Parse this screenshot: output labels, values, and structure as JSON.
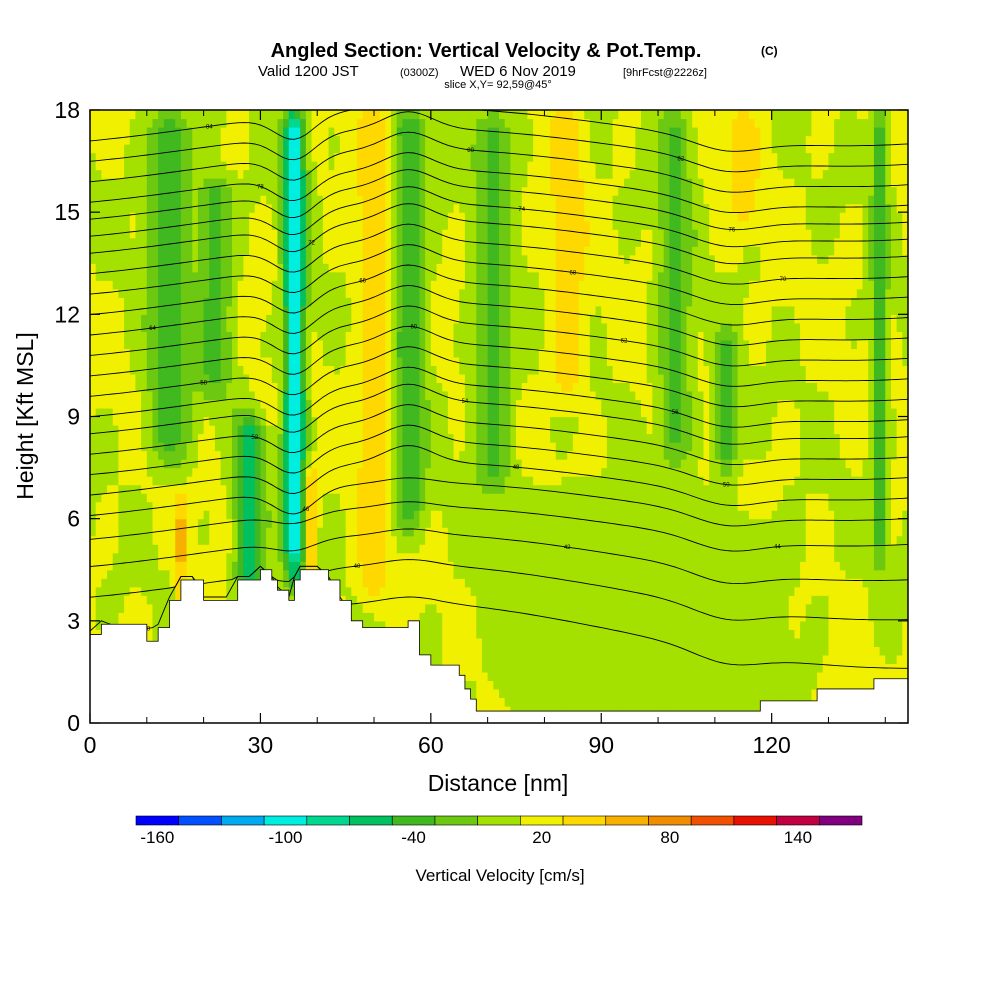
{
  "header": {
    "title_main": "Angled Section: Vertical Velocity & Pot.Temp.",
    "title_unit": "(C)",
    "valid_line": {
      "prefix": "Valid 1200 JST",
      "utc": "(0300Z)",
      "date": "WED 6 Nov 2019",
      "fcst": "[9hrFcst@2226z]"
    },
    "slice_line": "slice X,Y= 92,59@45°"
  },
  "chart_data": {
    "type": "heatmap",
    "title": "Angled Section: Vertical Velocity & Pot.Temp. (C)",
    "xlabel": "Distance [nm]",
    "ylabel": "Height [Kft MSL]",
    "xlim": [
      0,
      144
    ],
    "ylim": [
      0,
      18
    ],
    "x_ticks": [
      0,
      30,
      60,
      90,
      120
    ],
    "x_tick_labels": [
      "0",
      "30",
      "60",
      "90",
      "120"
    ],
    "y_ticks": [
      0,
      3,
      6,
      9,
      12,
      15,
      18
    ],
    "y_tick_labels": [
      "0",
      "3",
      "6",
      "9",
      "12",
      "15",
      "18"
    ],
    "color_scale": {
      "label": "Vertical Velocity [cm/s]",
      "tick_labels": [
        "-160",
        "-100",
        "-40",
        "20",
        "80",
        "140"
      ],
      "tick_values": [
        -160,
        -100,
        -40,
        20,
        80,
        140
      ],
      "range": [
        -170,
        170
      ],
      "bins": [
        {
          "lo": -170,
          "hi": -150,
          "color": "#0000ff"
        },
        {
          "lo": -150,
          "hi": -130,
          "color": "#0050ff"
        },
        {
          "lo": -130,
          "hi": -110,
          "color": "#00aaf0"
        },
        {
          "lo": -110,
          "hi": -90,
          "color": "#00eee0"
        },
        {
          "lo": -90,
          "hi": -70,
          "color": "#00d890"
        },
        {
          "lo": -70,
          "hi": -50,
          "color": "#00c060"
        },
        {
          "lo": -50,
          "hi": -30,
          "color": "#40b820"
        },
        {
          "lo": -30,
          "hi": -10,
          "color": "#6cc810"
        },
        {
          "lo": -10,
          "hi": 10,
          "color": "#a4e000"
        },
        {
          "lo": 10,
          "hi": 30,
          "color": "#f0f000"
        },
        {
          "lo": 30,
          "hi": 50,
          "color": "#ffd800"
        },
        {
          "lo": 50,
          "hi": 70,
          "color": "#f8b000"
        },
        {
          "lo": 70,
          "hi": 90,
          "color": "#f08c00"
        },
        {
          "lo": 90,
          "hi": 110,
          "color": "#f05000"
        },
        {
          "lo": 110,
          "hi": 130,
          "color": "#e81000"
        },
        {
          "lo": 130,
          "hi": 150,
          "color": "#c00040"
        },
        {
          "lo": 150,
          "hi": 170,
          "color": "#800080"
        }
      ]
    },
    "updraft_features": [
      {
        "x": 36,
        "z_bottom": 4.6,
        "z_top": 18,
        "w": -100,
        "width": 2.0
      },
      {
        "x": 28,
        "z_bottom": 4.0,
        "z_top": 9,
        "w": -65,
        "width": 2.5
      },
      {
        "x": 14,
        "z_bottom": 8.0,
        "z_top": 18,
        "w": -40,
        "width": 4.0
      },
      {
        "x": 22,
        "z_bottom": 10.0,
        "z_top": 16,
        "w": -40,
        "width": 3.0
      },
      {
        "x": 56,
        "z_bottom": 6.0,
        "z_top": 18,
        "w": -50,
        "width": 3.0
      },
      {
        "x": 71,
        "z_bottom": 7.0,
        "z_top": 18,
        "w": -35,
        "width": 3.5
      },
      {
        "x": 103,
        "z_bottom": 8.0,
        "z_top": 18,
        "w": -35,
        "width": 3.0
      },
      {
        "x": 112,
        "z_bottom": 7.5,
        "z_top": 11.5,
        "w": -40,
        "width": 2.0
      },
      {
        "x": 139,
        "z_bottom": 5.0,
        "z_top": 18,
        "w": -40,
        "width": 1.5
      },
      {
        "x": 90,
        "z_bottom": 0.3,
        "z_top": 7,
        "w": -5,
        "width": 20.0
      },
      {
        "x": 112,
        "z_bottom": 0.3,
        "z_top": 6,
        "w": -5,
        "width": 12.0
      }
    ],
    "warm_features": [
      {
        "x": 50,
        "z_bottom": 4.0,
        "z_top": 18,
        "w": 45,
        "width": 3.0
      },
      {
        "x": 84,
        "z_bottom": 10.0,
        "z_top": 18,
        "w": 45,
        "width": 3.0
      },
      {
        "x": 16,
        "z_bottom": 3.5,
        "z_top": 6.5,
        "w": 60,
        "width": 1.0
      },
      {
        "x": 39,
        "z_bottom": 4.5,
        "z_top": 7.5,
        "w": 55,
        "width": 1.0
      },
      {
        "x": 115,
        "z_bottom": 15.0,
        "z_top": 18,
        "w": 40,
        "width": 3.0
      }
    ],
    "terrain": {
      "x": [
        0,
        2,
        10,
        12,
        14,
        16,
        18,
        20,
        22,
        24,
        26,
        28,
        30,
        32,
        33,
        35,
        36,
        37,
        40,
        42,
        44,
        46,
        48,
        52,
        56,
        58,
        60,
        62,
        65,
        66,
        67,
        68,
        70,
        90,
        100,
        105,
        110,
        115,
        118,
        125,
        128,
        132,
        136,
        138,
        142,
        144
      ],
      "height": [
        2.6,
        2.9,
        2.4,
        2.8,
        3.6,
        4.2,
        4.2,
        3.6,
        3.6,
        3.6,
        4.2,
        4.2,
        4.5,
        4.2,
        3.9,
        3.6,
        4.2,
        4.5,
        4.5,
        4.2,
        3.6,
        3.0,
        2.8,
        2.8,
        3.0,
        2.0,
        1.7,
        1.7,
        1.4,
        1.0,
        0.7,
        0.35,
        0.35,
        0.35,
        0.35,
        0.35,
        0.35,
        0.35,
        0.65,
        0.65,
        1.0,
        1.0,
        1.0,
        1.3,
        1.3,
        1.3
      ]
    },
    "isentrope_heights_at_left": [
      3.0,
      4.1,
      5.0,
      5.8,
      6.5,
      7.1,
      7.7,
      8.3,
      8.9,
      9.4,
      10.0,
      10.6,
      11.2,
      11.8,
      12.4,
      13.0,
      13.6,
      14.2,
      14.7,
      15.2,
      15.7,
      16.3,
      16.9,
      17.5
    ],
    "isentrope_labels": [
      "38",
      "40",
      "42",
      "44",
      "46",
      "48",
      "50",
      "52",
      "54",
      "56",
      "58",
      "60",
      "62",
      "64",
      "66",
      "68",
      "70",
      "72",
      "74",
      "76",
      "78",
      "80",
      "82",
      "84"
    ]
  },
  "colors": {
    "background": "#ffffff",
    "terrain": "#ffffff",
    "contour": "#000000",
    "frame": "#000000"
  }
}
